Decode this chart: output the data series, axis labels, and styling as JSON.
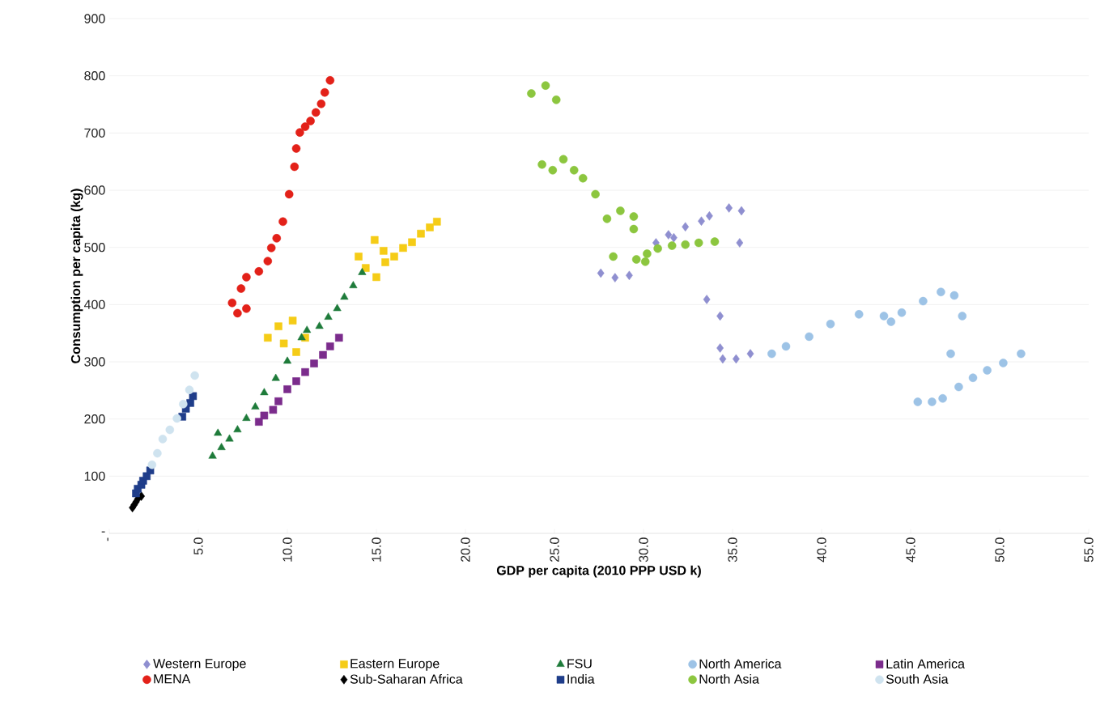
{
  "chart_data": {
    "type": "scatter",
    "xlabel": "GDP per capita (2010 PPP USD k)",
    "ylabel": "Consumption per capita (kg)",
    "xlim": [
      0,
      55
    ],
    "ylim": [
      0,
      900
    ],
    "xticks": [
      {
        "value": 0,
        "label": "-"
      },
      {
        "value": 5,
        "label": "5.0"
      },
      {
        "value": 10,
        "label": "10.0"
      },
      {
        "value": 15,
        "label": "15.0"
      },
      {
        "value": 20,
        "label": "20.0"
      },
      {
        "value": 25,
        "label": "25.0"
      },
      {
        "value": 30,
        "label": "30.0"
      },
      {
        "value": 35,
        "label": "35.0"
      },
      {
        "value": 40,
        "label": "40.0"
      },
      {
        "value": 45,
        "label": "45.0"
      },
      {
        "value": 50,
        "label": "50.0"
      },
      {
        "value": 55,
        "label": "55.0"
      }
    ],
    "yticks": [
      {
        "value": 0,
        "label": "-"
      },
      100,
      200,
      300,
      400,
      500,
      600,
      700,
      800,
      900
    ],
    "grid": "y",
    "legend": "bottom",
    "series": [
      {
        "name": "Western Europe",
        "color": "#8f8fd0",
        "marker": "diamond",
        "x": [
          27.6,
          28.4,
          29.2,
          30.7,
          31.4,
          31.7,
          32.35,
          33.25,
          33.7,
          34.8,
          35.5,
          35.4,
          33.55,
          34.3,
          34.3,
          34.45,
          35.2,
          36.0
        ],
        "values": [
          455,
          447,
          451,
          508,
          522,
          517,
          536,
          546,
          555,
          569,
          564,
          508,
          409,
          380,
          324,
          305,
          305,
          314
        ]
      },
      {
        "name": "Eastern Europe",
        "color": "#f5cc17",
        "marker": "square",
        "x": [
          18.4,
          18.0,
          17.5,
          17.0,
          16.5,
          16.0,
          15.5,
          14.9,
          15.4,
          14.0,
          14.4,
          15.0,
          8.9,
          9.5,
          10.3,
          11.0,
          10.5,
          9.8
        ],
        "values": [
          545,
          535,
          524,
          509,
          499,
          484,
          474,
          513,
          494,
          484,
          464,
          448,
          342,
          362,
          372,
          342,
          317,
          332
        ]
      },
      {
        "name": "FSU",
        "color": "#1e7b3a",
        "marker": "triangle",
        "x": [
          14.2,
          13.7,
          13.2,
          12.8,
          12.3,
          11.8,
          11.1,
          10.8,
          10.0,
          9.35,
          8.7,
          8.2,
          7.7,
          7.2,
          6.75,
          6.3,
          5.8,
          6.1
        ],
        "values": [
          456,
          433,
          413,
          393,
          378,
          362,
          355,
          342,
          301,
          271,
          246,
          221,
          201,
          181,
          165,
          150,
          135,
          175
        ]
      },
      {
        "name": "North America",
        "color": "#9dc3e6",
        "marker": "circle",
        "x": [
          37.2,
          38.0,
          39.3,
          40.5,
          42.1,
          43.5,
          43.9,
          44.5,
          45.7,
          46.7,
          47.45,
          47.9,
          47.25,
          45.4,
          46.2,
          46.8,
          47.7,
          48.5,
          49.3,
          50.2,
          51.2
        ],
        "values": [
          314,
          327,
          344,
          366,
          383,
          380,
          370,
          386,
          406,
          422,
          416,
          380,
          314,
          230,
          230,
          236,
          256,
          272,
          285,
          298,
          314
        ]
      },
      {
        "name": "Latin America",
        "color": "#7b2c8c",
        "marker": "square",
        "x": [
          12.9,
          12.4,
          12.0,
          11.5,
          11.0,
          10.5,
          10.0,
          9.5,
          9.2,
          8.7,
          8.4
        ],
        "values": [
          342,
          327,
          312,
          297,
          282,
          266,
          252,
          231,
          216,
          206,
          195
        ]
      },
      {
        "name": "MENA",
        "color": "#e32119",
        "marker": "circle",
        "x": [
          12.4,
          12.1,
          11.9,
          11.6,
          11.3,
          11.0,
          10.7,
          10.5,
          10.4,
          10.1,
          9.75,
          9.4,
          9.1,
          8.9,
          8.4,
          7.7,
          7.4,
          6.9,
          7.2,
          7.7
        ],
        "values": [
          792,
          771,
          751,
          736,
          721,
          711,
          701,
          673,
          641,
          593,
          545,
          516,
          499,
          476,
          458,
          448,
          428,
          403,
          385,
          393
        ]
      },
      {
        "name": "Sub-Saharan Africa",
        "color": "#000000",
        "marker": "diamond",
        "x": [
          1.3,
          1.4,
          1.5,
          1.6,
          1.8
        ],
        "values": [
          45,
          50,
          55,
          60,
          65
        ]
      },
      {
        "name": "India",
        "color": "#1f3d8a",
        "marker": "square",
        "x": [
          1.5,
          1.6,
          1.8,
          1.9,
          2.1,
          2.3,
          4.1,
          4.3,
          4.55,
          4.7
        ],
        "values": [
          70,
          78,
          85,
          92,
          100,
          110,
          204,
          218,
          228,
          240
        ]
      },
      {
        "name": "North Asia",
        "color": "#8cc63f",
        "marker": "circle",
        "x": [
          23.7,
          24.5,
          25.1,
          24.3,
          24.9,
          25.5,
          26.1,
          26.6,
          27.3,
          27.95,
          28.7,
          29.45,
          29.45,
          28.3,
          29.6,
          30.1,
          30.2,
          30.8,
          31.6,
          32.35,
          33.1,
          34.0
        ],
        "values": [
          769,
          783,
          758,
          645,
          635,
          654,
          635,
          621,
          593,
          550,
          564,
          554,
          532,
          484,
          479,
          475,
          489,
          498,
          503,
          505,
          508,
          510
        ]
      },
      {
        "name": "South Asia",
        "color": "#cfe3ef",
        "marker": "circle",
        "x": [
          4.8,
          4.5,
          4.15,
          3.8,
          3.4,
          3.0,
          2.7,
          2.4
        ],
        "values": [
          276,
          251,
          226,
          201,
          181,
          165,
          140,
          120
        ]
      }
    ]
  }
}
